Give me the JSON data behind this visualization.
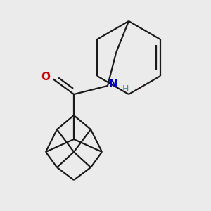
{
  "background_color": "#ebebeb",
  "bond_color": "#1a1a1a",
  "oxygen_color": "#cc0000",
  "nitrogen_color": "#0000cc",
  "hydrogen_color": "#4a9090",
  "line_width": 1.6,
  "fig_size": [
    3.0,
    3.0
  ],
  "dpi": 100,
  "xlim": [
    0,
    300
  ],
  "ylim": [
    0,
    300
  ]
}
